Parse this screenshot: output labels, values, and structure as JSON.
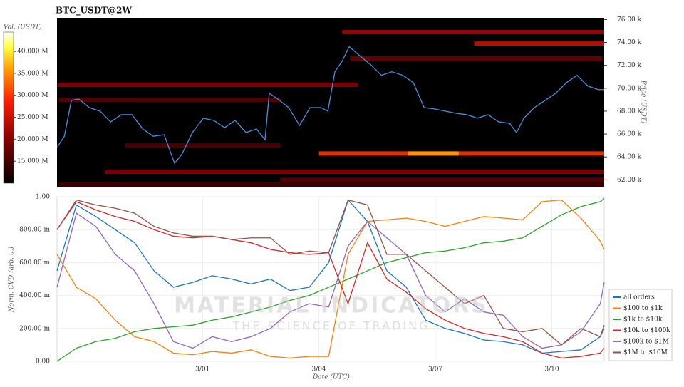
{
  "chart_data": [
    {
      "type": "heatmap",
      "title": "BTC_USDT@2W",
      "ylabel": "Price (USDT)",
      "colorbar_label": "Vol. (USDT)",
      "xlim": [
        -2.75,
        11.35
      ],
      "ylim": [
        61400,
        76150
      ],
      "yticks": [
        {
          "value": 62000,
          "label": "62.00 k"
        },
        {
          "value": 64000,
          "label": "64.00 k"
        },
        {
          "value": 66000,
          "label": "66.00 k"
        },
        {
          "value": 68000,
          "label": "68.00 k"
        },
        {
          "value": 70000,
          "label": "70.00 k"
        },
        {
          "value": 72000,
          "label": "72.00 k"
        },
        {
          "value": 74000,
          "label": "74.00 k"
        },
        {
          "value": 76000,
          "label": "76.00 k"
        }
      ],
      "clim": [
        10000000,
        44400000
      ],
      "cticks": [
        {
          "value": 15000000,
          "label": "15.000 M"
        },
        {
          "value": 20000000,
          "label": "20.000 M"
        },
        {
          "value": 25000000,
          "label": "25.000 M"
        },
        {
          "value": 30000000,
          "label": "30.000 M"
        },
        {
          "value": 35000000,
          "label": "35.000 M"
        },
        {
          "value": 40000000,
          "label": "40.000 M"
        }
      ],
      "bands": [
        {
          "price": 74900,
          "x0": 4.6,
          "x1": 11.35,
          "volume": 22000000
        },
        {
          "price": 73900,
          "x0": 8.0,
          "x1": 11.35,
          "volume": 25000000
        },
        {
          "price": 72600,
          "x0": 4.8,
          "x1": 11.3,
          "volume": 18000000
        },
        {
          "price": 70300,
          "x0": -2.74,
          "x1": 5.0,
          "volume": 20000000
        },
        {
          "price": 69000,
          "x0": -2.7,
          "x1": 3.0,
          "volume": 17000000
        },
        {
          "price": 65000,
          "x0": -1.0,
          "x1": 3.0,
          "volume": 16000000
        },
        {
          "price": 64300,
          "x0": 4.0,
          "x1": 11.35,
          "volume": 30000000
        },
        {
          "price": 64300,
          "x0": 6.3,
          "x1": 7.6,
          "volume": 36000000
        },
        {
          "price": 62700,
          "x0": -1.5,
          "x1": 11.35,
          "volume": 20000000
        },
        {
          "price": 62000,
          "x0": 3.0,
          "x1": 11.35,
          "volume": 17000000
        },
        {
          "price": 61600,
          "x0": -2.7,
          "x1": 11.35,
          "volume": 15000000
        }
      ],
      "price_line": {
        "color": "#4a90d9",
        "x": [
          -2.74,
          -2.56,
          -2.38,
          -2.19,
          -1.92,
          -1.64,
          -1.37,
          -1.09,
          -0.82,
          -0.54,
          -0.27,
          0.01,
          0.28,
          0.47,
          0.74,
          1.02,
          1.29,
          1.57,
          1.84,
          2.12,
          2.39,
          2.61,
          2.72,
          2.94,
          3.22,
          3.5,
          3.77,
          4.05,
          4.23,
          4.41,
          4.6,
          4.78,
          5.06,
          5.33,
          5.61,
          5.88,
          6.16,
          6.43,
          6.71,
          6.98,
          7.26,
          7.53,
          7.81,
          8.08,
          8.36,
          8.63,
          8.91,
          9.09,
          9.28,
          9.55,
          9.83,
          10.1,
          10.38,
          10.65,
          10.93,
          11.2,
          11.35
        ],
        "values": [
          64875,
          65810,
          68940,
          69060,
          68310,
          68000,
          67060,
          67690,
          67690,
          66440,
          65810,
          65940,
          63440,
          64250,
          66130,
          67380,
          67190,
          66560,
          67190,
          66130,
          66440,
          65500,
          69560,
          69060,
          68310,
          66750,
          68310,
          68310,
          68000,
          71440,
          72380,
          73630,
          72810,
          72060,
          71130,
          71440,
          71130,
          70500,
          68310,
          68190,
          68000,
          67810,
          67690,
          67380,
          67690,
          67060,
          66940,
          66130,
          67380,
          68310,
          68940,
          69560,
          70500,
          71130,
          70190,
          69880,
          69880
        ]
      }
    },
    {
      "type": "line",
      "ylabel": "Norm. CVD (arb. u.)",
      "xlabel": "Date (UTC)",
      "legend": "right",
      "xlim": [
        -2.75,
        11.35
      ],
      "xticks": [
        {
          "value": 1,
          "label": "3/01"
        },
        {
          "value": 4,
          "label": "3/04"
        },
        {
          "value": 7,
          "label": "3/07"
        },
        {
          "value": 10,
          "label": "3/10"
        }
      ],
      "ylim": [
        0,
        1
      ],
      "yticks": [
        {
          "value": 0,
          "label": "0.00"
        },
        {
          "value": 0.2,
          "label": "200.00 m"
        },
        {
          "value": 0.4,
          "label": "400.00 m"
        },
        {
          "value": 0.6,
          "label": "600.00 m"
        },
        {
          "value": 0.8,
          "label": "800.00 m"
        },
        {
          "value": 1,
          "label": "1.00"
        }
      ],
      "x": [
        -2.75,
        -2.25,
        -1.75,
        -1.25,
        -0.75,
        -0.25,
        0.25,
        0.75,
        1.25,
        1.75,
        2.25,
        2.75,
        3.25,
        3.75,
        4.25,
        4.75,
        5.25,
        5.75,
        6.25,
        6.75,
        7.25,
        7.75,
        8.25,
        8.75,
        9.25,
        9.75,
        10.25,
        10.75,
        11.25,
        11.35
      ],
      "series": [
        {
          "name": "all orders",
          "color": "#1f77b4",
          "values": [
            0.55,
            0.95,
            0.88,
            0.8,
            0.72,
            0.55,
            0.45,
            0.48,
            0.52,
            0.5,
            0.47,
            0.5,
            0.43,
            0.45,
            0.6,
            0.98,
            0.85,
            0.55,
            0.45,
            0.25,
            0.2,
            0.17,
            0.13,
            0.12,
            0.1,
            0.05,
            0.06,
            0.07,
            0.15,
            0.2
          ]
        },
        {
          "name": "$100 to $1k",
          "color": "#ff7f0e",
          "values": [
            0.65,
            0.45,
            0.38,
            0.25,
            0.15,
            0.12,
            0.05,
            0.04,
            0.06,
            0.05,
            0.07,
            0.03,
            0.02,
            0.03,
            0.03,
            0.65,
            0.85,
            0.86,
            0.87,
            0.85,
            0.82,
            0.85,
            0.88,
            0.87,
            0.86,
            0.97,
            0.98,
            0.87,
            0.73,
            0.68
          ]
        },
        {
          "name": "$1k to $10k",
          "color": "#2ca02c",
          "values": [
            0.0,
            0.08,
            0.12,
            0.14,
            0.18,
            0.2,
            0.21,
            0.22,
            0.25,
            0.27,
            0.3,
            0.33,
            0.37,
            0.4,
            0.45,
            0.5,
            0.55,
            0.6,
            0.63,
            0.66,
            0.67,
            0.69,
            0.72,
            0.73,
            0.75,
            0.82,
            0.89,
            0.94,
            0.97,
            0.99
          ]
        },
        {
          "name": "$10k to $100k",
          "color": "#d62728",
          "values": [
            0.8,
            0.97,
            0.92,
            0.88,
            0.85,
            0.8,
            0.76,
            0.75,
            0.76,
            0.74,
            0.72,
            0.68,
            0.66,
            0.65,
            0.66,
            0.35,
            0.72,
            0.5,
            0.42,
            0.32,
            0.25,
            0.2,
            0.17,
            0.15,
            0.12,
            0.05,
            0.02,
            0.03,
            0.05,
            0.08
          ]
        },
        {
          "name": "$100k to $1M",
          "color": "#9467bd",
          "values": [
            0.45,
            0.9,
            0.82,
            0.65,
            0.55,
            0.35,
            0.12,
            0.08,
            0.15,
            0.12,
            0.15,
            0.2,
            0.3,
            0.35,
            0.33,
            0.7,
            0.85,
            0.75,
            0.65,
            0.4,
            0.3,
            0.38,
            0.3,
            0.28,
            0.15,
            0.08,
            0.1,
            0.18,
            0.35,
            0.48
          ]
        },
        {
          "name": "$1M to $10M",
          "color": "#8c564b",
          "values": [
            0.8,
            0.98,
            0.95,
            0.93,
            0.9,
            0.82,
            0.78,
            0.76,
            0.76,
            0.74,
            0.75,
            0.75,
            0.65,
            0.67,
            0.66,
            0.98,
            0.95,
            0.65,
            0.65,
            0.55,
            0.45,
            0.35,
            0.4,
            0.2,
            0.18,
            0.2,
            0.1,
            0.2,
            0.15,
            0.22
          ]
        }
      ]
    }
  ],
  "watermark": {
    "title": "MATERIAL INDICATORS",
    "subtitle": "THE SCIENCE OF TRADING"
  }
}
